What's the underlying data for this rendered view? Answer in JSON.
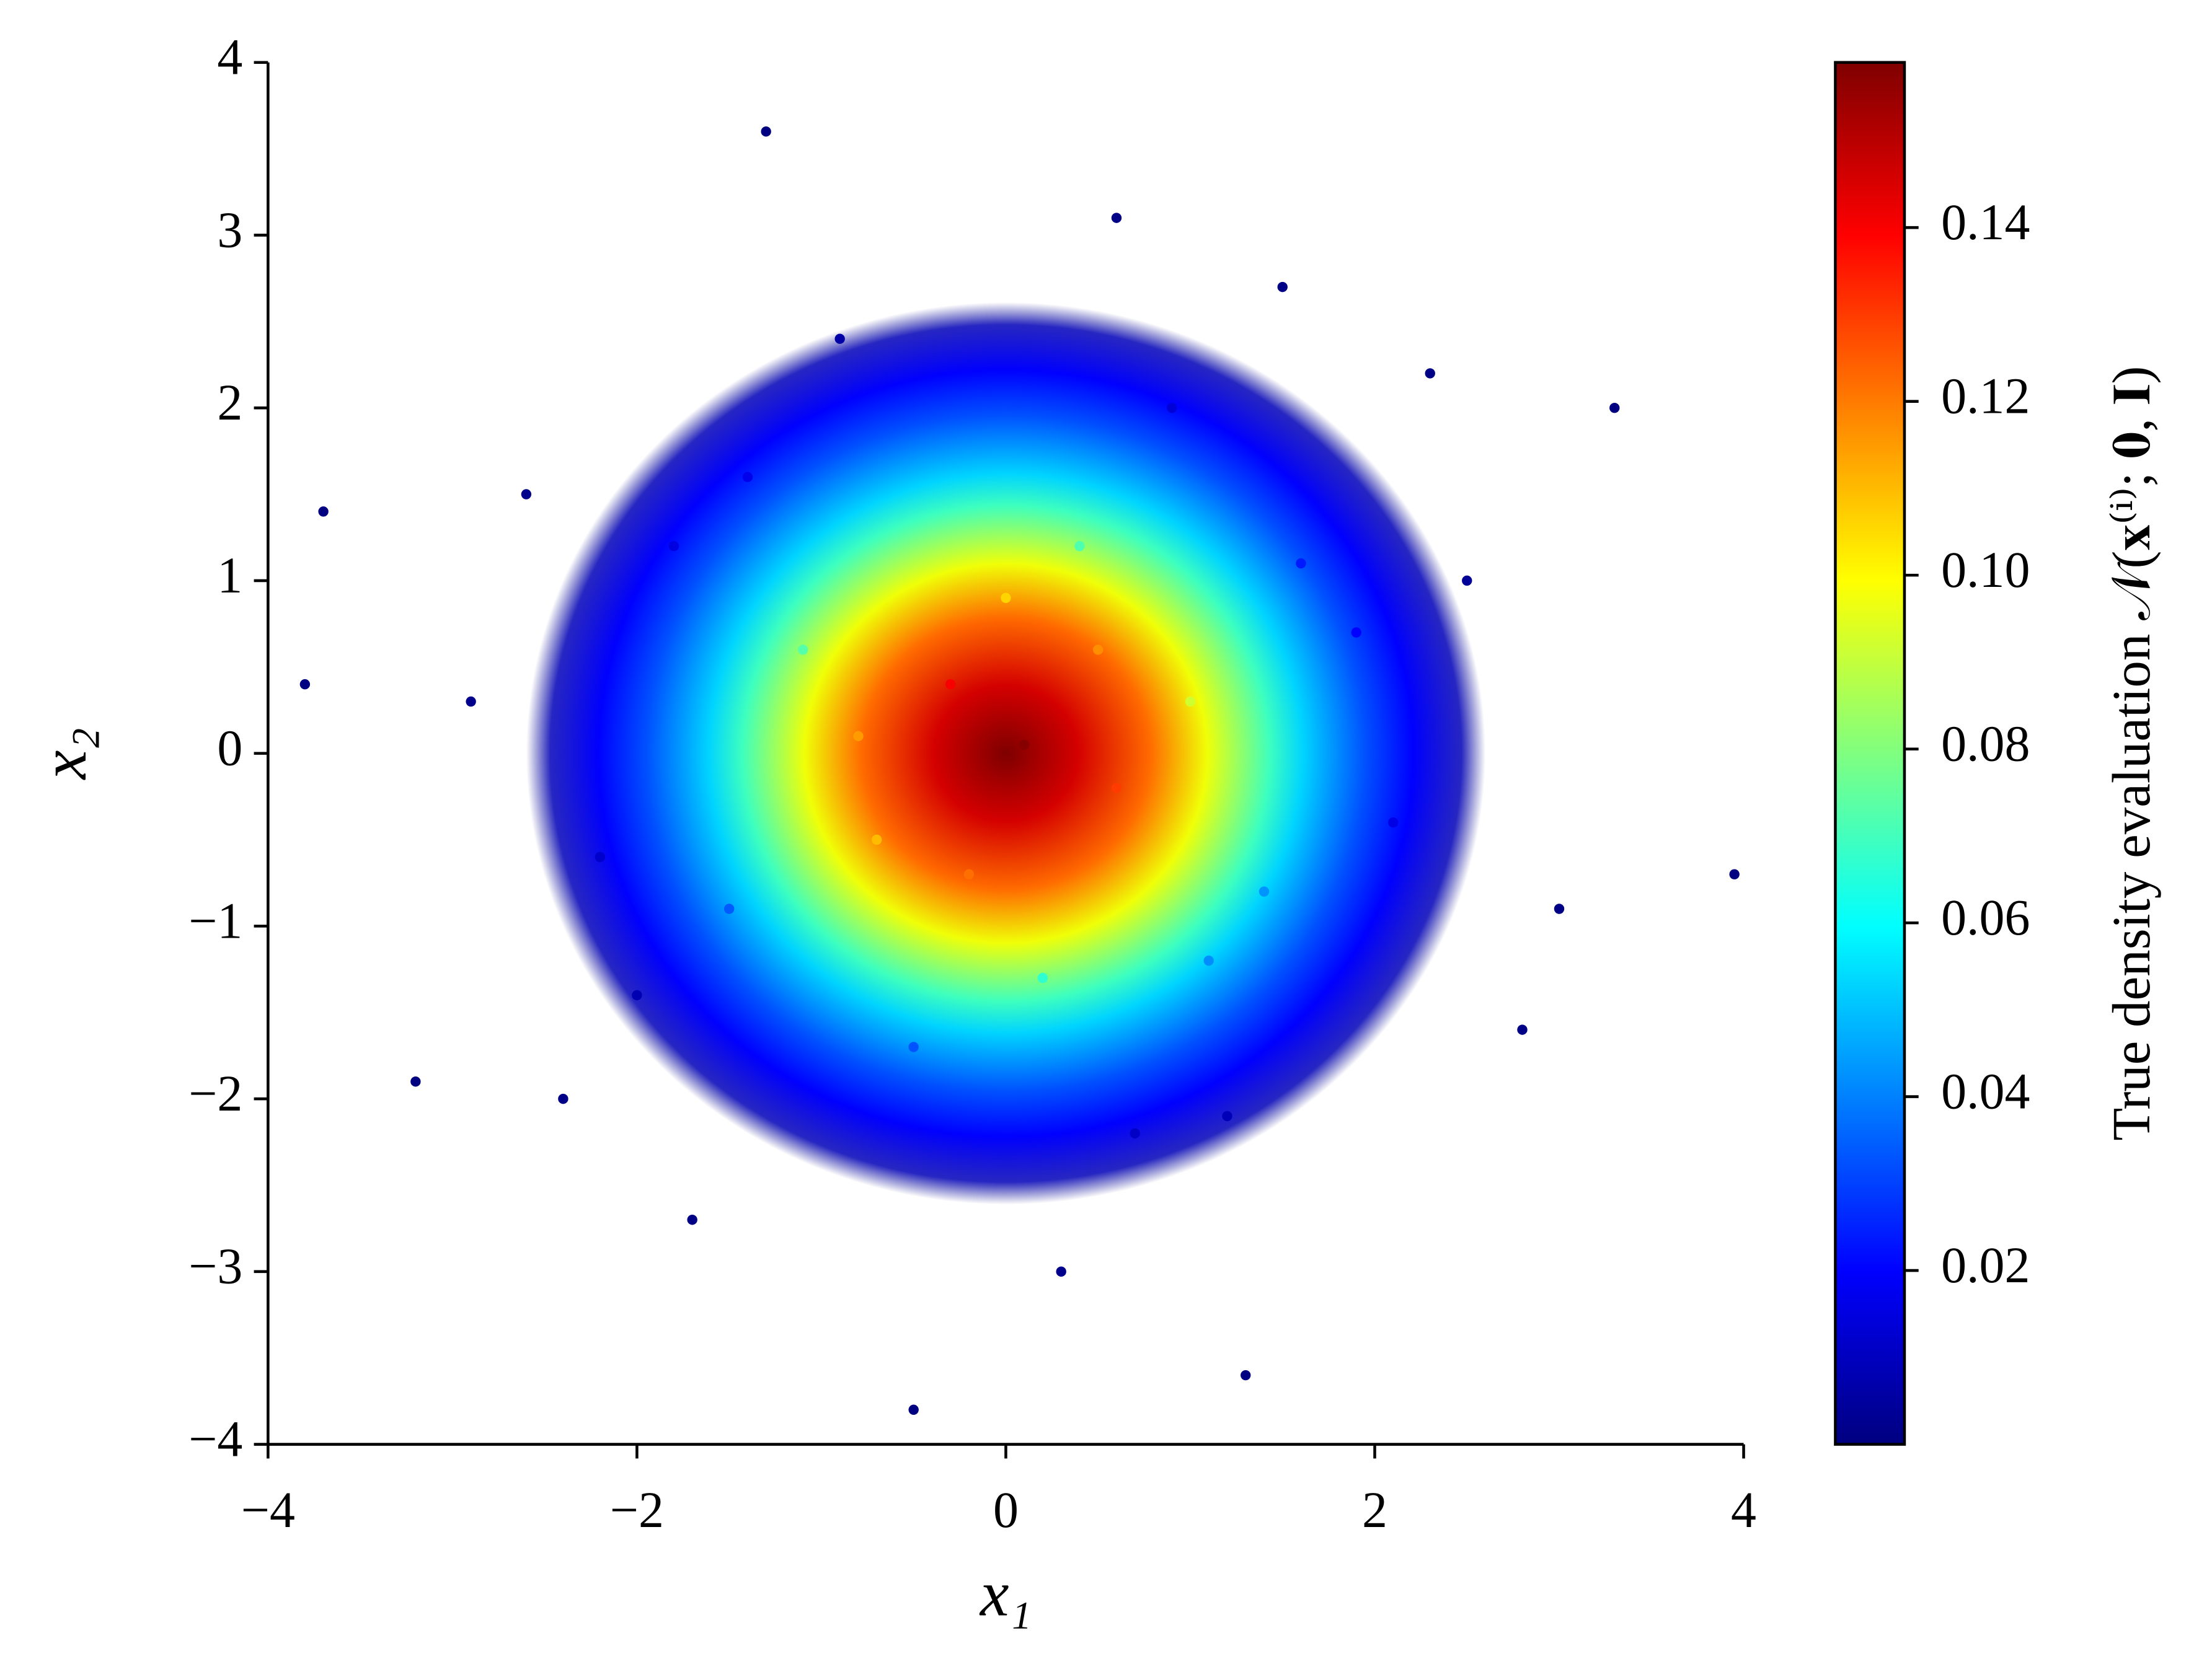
{
  "chart_data": {
    "type": "scatter",
    "xlabel": "x₁",
    "ylabel": "x₂",
    "colorbar_label": "True density evaluation 𝒩(𝐱⁽ⁱ⁾; 𝟎, 𝐈)",
    "colormap": "jet",
    "x": [
      0.1,
      -0.3,
      0.6,
      -0.7,
      1.0,
      -1.1,
      0.4,
      0.2,
      1.4,
      -1.5,
      -0.5,
      1.6,
      -1.8,
      0.9,
      2.1,
      -2.2,
      1.2,
      -0.9,
      2.5,
      -2.6,
      2.8,
      -1.7,
      0.3,
      3.3,
      -3.7,
      3.95,
      -1.3,
      -0.5,
      0.0,
      -0.8,
      0.5,
      -0.2,
      1.1,
      -1.4,
      1.9,
      -2.0,
      0.7,
      -2.9,
      2.3,
      -2.4,
      3.0,
      1.5,
      -3.2,
      1.3,
      -3.8,
      0.6
    ],
    "y": [
      0.05,
      0.4,
      -0.2,
      -0.5,
      0.3,
      0.6,
      1.2,
      -1.3,
      -0.8,
      -0.9,
      -1.7,
      1.1,
      1.2,
      2.0,
      -0.4,
      -0.6,
      -2.1,
      2.4,
      1.0,
      1.5,
      -1.6,
      -2.7,
      -3.0,
      2.0,
      1.4,
      -0.7,
      3.6,
      -3.8,
      0.9,
      0.1,
      0.6,
      -0.7,
      -1.2,
      1.6,
      0.7,
      -1.4,
      -2.2,
      0.3,
      2.2,
      -2.0,
      -0.9,
      2.7,
      -1.9,
      -3.6,
      0.4,
      3.1
    ],
    "values": [
      0.158,
      0.14,
      0.13,
      0.11,
      0.092,
      0.073,
      0.072,
      0.067,
      0.043,
      0.034,
      0.033,
      0.024,
      0.015,
      0.014,
      0.016,
      0.012,
      0.009,
      0.006,
      0.004,
      0.002,
      0.001,
      0.001,
      0.002,
      0.0001,
      0.0001,
      2e-05,
      0.0001,
      0.0001,
      0.106,
      0.115,
      0.117,
      0.122,
      0.042,
      0.017,
      0.02,
      0.008,
      0.011,
      0.002,
      0.001,
      0.001,
      0.001,
      0.001,
      0.0002,
      0.0001,
      0.0001,
      0.001
    ],
    "xlim": [
      -4,
      4
    ],
    "ylim": [
      -4,
      4
    ],
    "xticks": [
      {
        "value": -4,
        "label": "−4"
      },
      {
        "value": -2,
        "label": "−2"
      },
      0,
      2,
      4
    ],
    "yticks": [
      {
        "value": -4,
        "label": "−4"
      },
      {
        "value": -3,
        "label": "−3"
      },
      {
        "value": -2,
        "label": "−2"
      },
      {
        "value": -1,
        "label": "−1"
      },
      0,
      1,
      2,
      3,
      4
    ],
    "clim": [
      0,
      0.159
    ],
    "cticks": [
      0.02,
      0.04,
      0.06,
      0.08,
      {
        "value": 0.1,
        "label": "0.10"
      },
      0.12,
      0.14
    ]
  }
}
